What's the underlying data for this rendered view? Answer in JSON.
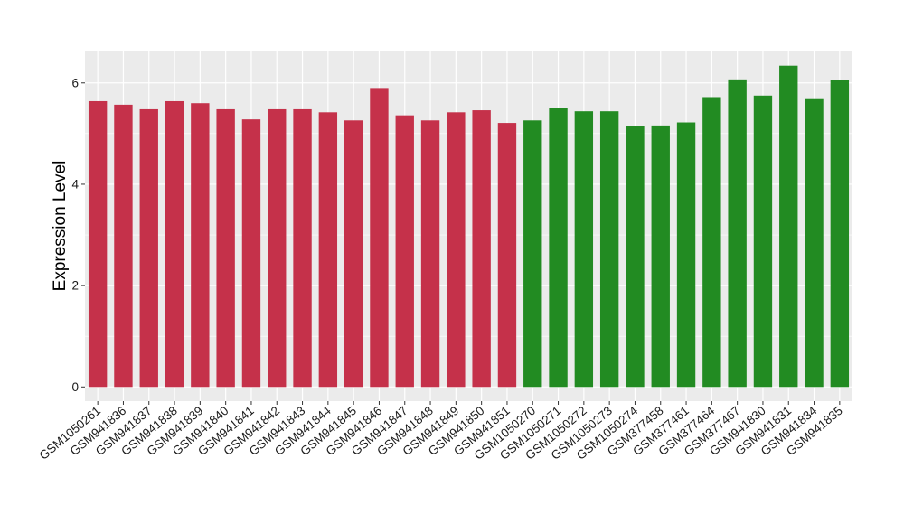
{
  "chart_data": {
    "type": "bar",
    "title": "",
    "xlabel": "",
    "ylabel": "Expression Level",
    "ylim": [
      -0.28,
      6.62
    ],
    "yticks": [
      0,
      2,
      4,
      6
    ],
    "grid": true,
    "legend": "none",
    "colors": {
      "group1": "#c5314a",
      "group2": "#228b22",
      "panel_background": "#ebebeb",
      "gridline": "#ffffff"
    },
    "categories": [
      "GSM1050261",
      "GSM941836",
      "GSM941837",
      "GSM941838",
      "GSM941839",
      "GSM941840",
      "GSM941841",
      "GSM941842",
      "GSM941843",
      "GSM941844",
      "GSM941845",
      "GSM941846",
      "GSM941847",
      "GSM941848",
      "GSM941849",
      "GSM941850",
      "GSM941851",
      "GSM1050270",
      "GSM1050271",
      "GSM1050272",
      "GSM1050273",
      "GSM1050274",
      "GSM377458",
      "GSM377461",
      "GSM377464",
      "GSM377467",
      "GSM941830",
      "GSM941831",
      "GSM941834",
      "GSM941835"
    ],
    "values": [
      5.64,
      5.57,
      5.48,
      5.64,
      5.6,
      5.48,
      5.28,
      5.48,
      5.48,
      5.42,
      5.26,
      5.9,
      5.36,
      5.26,
      5.42,
      5.46,
      5.21,
      5.26,
      5.51,
      5.44,
      5.44,
      5.14,
      5.16,
      5.22,
      5.72,
      6.07,
      5.75,
      6.34,
      5.68,
      6.05
    ],
    "bar_groups": [
      "group1",
      "group1",
      "group1",
      "group1",
      "group1",
      "group1",
      "group1",
      "group1",
      "group1",
      "group1",
      "group1",
      "group1",
      "group1",
      "group1",
      "group1",
      "group1",
      "group1",
      "group2",
      "group2",
      "group2",
      "group2",
      "group2",
      "group2",
      "group2",
      "group2",
      "group2",
      "group2",
      "group2",
      "group2",
      "group2"
    ]
  }
}
